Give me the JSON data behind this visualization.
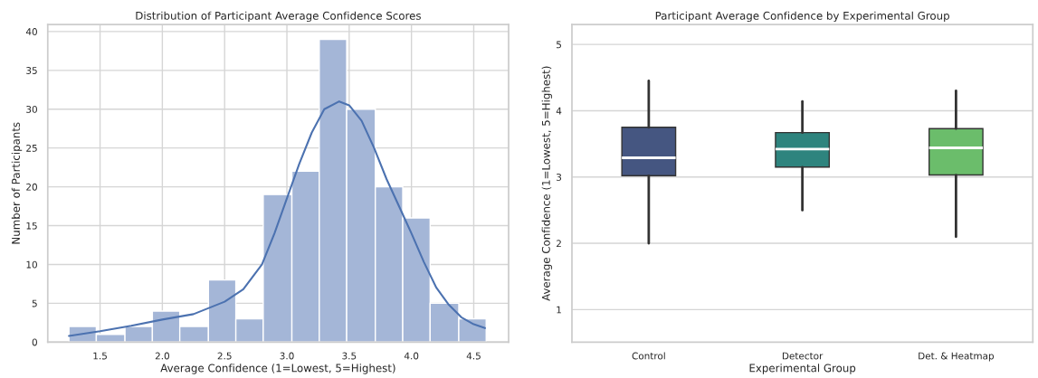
{
  "chart_data": [
    {
      "type": "histogram",
      "title": "Distribution of Participant Average Confidence Scores",
      "xlabel": "Average Confidence (1=Lowest, 5=Highest)",
      "ylabel": "Number of Participants",
      "series": [
        {
          "type": "histogram",
          "color": "#a4b6d7",
          "bins": [
            1.25,
            1.47,
            1.7,
            1.92,
            2.14,
            2.37,
            2.59,
            2.81,
            3.04,
            3.26,
            3.48,
            3.71,
            3.93,
            4.15,
            4.38,
            4.6
          ],
          "values": [
            2,
            1,
            2,
            4,
            2,
            8,
            3,
            19,
            22,
            39,
            30,
            20,
            16,
            5,
            3
          ]
        },
        {
          "type": "line",
          "color": "#4c72b0",
          "x": [
            1.25,
            1.5,
            1.75,
            2.0,
            2.25,
            2.5,
            2.65,
            2.8,
            2.9,
            3.0,
            3.1,
            3.2,
            3.3,
            3.42,
            3.5,
            3.6,
            3.7,
            3.8,
            3.9,
            4.0,
            4.1,
            4.2,
            4.3,
            4.4,
            4.5,
            4.59
          ],
          "values": [
            0.8,
            1.4,
            2.1,
            2.9,
            3.6,
            5.2,
            6.8,
            10,
            14,
            18.5,
            23,
            27,
            30,
            31,
            30.5,
            28.5,
            25,
            21,
            17.5,
            14,
            10.3,
            7,
            4.8,
            3.2,
            2.3,
            1.8
          ]
        }
      ],
      "xlim": [
        1.08,
        4.78
      ],
      "xticks": [
        1.5,
        {
          "value": 2,
          "label": "2.0"
        },
        2.5,
        {
          "value": 3,
          "label": "3.0"
        },
        3.5,
        {
          "value": 4,
          "label": "4.0"
        },
        4.5
      ],
      "ylim": [
        0,
        40.9
      ],
      "yticks": [
        0,
        5,
        10,
        15,
        20,
        25,
        30,
        35,
        40
      ],
      "grid": true
    },
    {
      "type": "box",
      "title": "Participant Average Confidence by Experimental Group",
      "xlabel": "Experimental Group",
      "ylabel": "Average Confidence (1=Lowest, 5=Highest)",
      "categories": [
        "Control",
        "Detector",
        "Det. & Heatmap"
      ],
      "colors": [
        "#455681",
        "#2e847e",
        "#6bbd6b"
      ],
      "boxes": [
        {
          "low": 2.0,
          "q1": 3.02,
          "median": 3.29,
          "q3": 3.75,
          "high": 4.45
        },
        {
          "low": 2.5,
          "q1": 3.15,
          "median": 3.42,
          "q3": 3.67,
          "high": 4.14
        },
        {
          "low": 2.1,
          "q1": 3.03,
          "median": 3.44,
          "q3": 3.73,
          "high": 4.3
        }
      ],
      "ylim": [
        0.51,
        5.3
      ],
      "yticks": [
        1,
        2,
        3,
        4,
        5
      ],
      "grid": "y"
    }
  ]
}
